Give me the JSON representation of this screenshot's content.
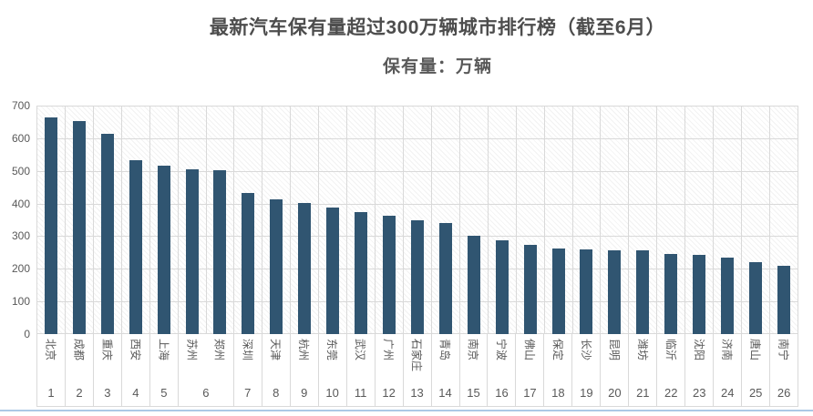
{
  "title": "最新汽车保有量超过300万辆城市排行榜（截至6月）",
  "subtitle": "保有量：万辆",
  "colors": {
    "bar": "#305571",
    "gridline": "#d9d9d9",
    "axis_text": "#595959",
    "title_text": "#4d4d4d",
    "bottom_line": "#abc8e5"
  },
  "chart_data": {
    "type": "bar",
    "title": "最新汽车保有量超过300万辆城市排行榜（截至6月）",
    "subtitle": "保有量：万辆",
    "xlabel": "",
    "ylabel": "保有量：万辆",
    "ylim": [
      0,
      700
    ],
    "yticks": [
      700,
      600,
      500,
      400,
      300,
      200,
      100,
      0
    ],
    "grid": true,
    "legend": false,
    "plot_background": "diagonal-hatch",
    "categories": [
      "北京",
      "成都",
      "重庆",
      "西安",
      "上海",
      "苏州",
      "郑州",
      "深圳",
      "天津",
      "杭州",
      "东莞",
      "武汉",
      "广州",
      "石家庄",
      "青岛",
      "南京",
      "宁波",
      "佛山",
      "保定",
      "长沙",
      "昆明",
      "潍坊",
      "临沂",
      "沈阳",
      "济南",
      "唐山",
      "南宁"
    ],
    "ranks": [
      1,
      2,
      3,
      4,
      5,
      6,
      6,
      7,
      8,
      9,
      10,
      11,
      12,
      13,
      14,
      15,
      16,
      17,
      18,
      19,
      20,
      21,
      22,
      23,
      24,
      25,
      26
    ],
    "values": [
      665,
      653,
      613,
      532,
      517,
      505,
      503,
      432,
      412,
      402,
      388,
      375,
      363,
      349,
      340,
      301,
      288,
      272,
      261,
      259,
      257,
      256,
      246,
      244,
      235,
      220,
      208
    ]
  },
  "x_axis_groups": [
    {
      "cities": [
        "北京"
      ],
      "rank": "1"
    },
    {
      "cities": [
        "成都"
      ],
      "rank": "2"
    },
    {
      "cities": [
        "重庆"
      ],
      "rank": "3"
    },
    {
      "cities": [
        "西安"
      ],
      "rank": "4"
    },
    {
      "cities": [
        "上海"
      ],
      "rank": "5"
    },
    {
      "cities": [
        "苏州",
        "郑州"
      ],
      "rank": "6"
    },
    {
      "cities": [
        "深圳"
      ],
      "rank": "7"
    },
    {
      "cities": [
        "天津"
      ],
      "rank": "8"
    },
    {
      "cities": [
        "杭州"
      ],
      "rank": "9"
    },
    {
      "cities": [
        "东莞"
      ],
      "rank": "10"
    },
    {
      "cities": [
        "武汉"
      ],
      "rank": "11"
    },
    {
      "cities": [
        "广州"
      ],
      "rank": "12"
    },
    {
      "cities": [
        "石家庄"
      ],
      "rank": "13"
    },
    {
      "cities": [
        "青岛"
      ],
      "rank": "14"
    },
    {
      "cities": [
        "南京"
      ],
      "rank": "15"
    },
    {
      "cities": [
        "宁波"
      ],
      "rank": "16"
    },
    {
      "cities": [
        "佛山"
      ],
      "rank": "17"
    },
    {
      "cities": [
        "保定"
      ],
      "rank": "18"
    },
    {
      "cities": [
        "长沙"
      ],
      "rank": "19"
    },
    {
      "cities": [
        "昆明"
      ],
      "rank": "20"
    },
    {
      "cities": [
        "潍坊"
      ],
      "rank": "21"
    },
    {
      "cities": [
        "临沂"
      ],
      "rank": "22"
    },
    {
      "cities": [
        "沈阳"
      ],
      "rank": "23"
    },
    {
      "cities": [
        "济南"
      ],
      "rank": "24"
    },
    {
      "cities": [
        "唐山"
      ],
      "rank": "25"
    },
    {
      "cities": [
        "南宁"
      ],
      "rank": "26"
    }
  ]
}
